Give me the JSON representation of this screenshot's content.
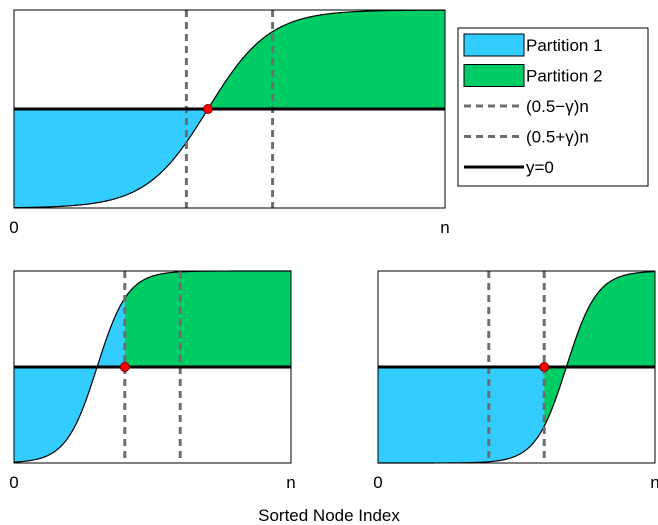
{
  "xlabel": "Sorted Node Index",
  "legend": {
    "placement": "right",
    "items": [
      {
        "label": "Partition 1",
        "kind": "patch",
        "color": "#33ccff"
      },
      {
        "label": "Partition 2",
        "kind": "patch",
        "color": "#00cc66"
      },
      {
        "label": "(0.5−γ)n",
        "kind": "dashed",
        "color": "#6e6e6e"
      },
      {
        "label": "(0.5+γ)n",
        "kind": "dashed",
        "color": "#6e6e6e"
      },
      {
        "label": "y=0",
        "kind": "solid",
        "color": "#000000"
      }
    ]
  },
  "colors": {
    "partition1": "#33ccff",
    "partition2": "#00cc66",
    "vline": "#6e6e6e",
    "marker": "#ff0000",
    "axis": "#000000"
  },
  "chart_data": [
    {
      "type": "area",
      "panel": "top",
      "xtick_labels": [
        "0",
        "n"
      ],
      "xlim": [
        0,
        1
      ],
      "ylim": [
        -1,
        1
      ],
      "grid": false,
      "curve": {
        "shape": "sigmoid",
        "center": 0.45,
        "steepness": 14
      },
      "vlines": [
        0.4,
        0.6
      ],
      "split": 0.45,
      "marker": {
        "x": 0.45,
        "y": 0
      }
    },
    {
      "type": "area",
      "panel": "bottom-left",
      "xtick_labels": [
        "0",
        "n"
      ],
      "xlim": [
        0,
        1
      ],
      "ylim": [
        -1,
        1
      ],
      "grid": false,
      "curve": {
        "shape": "sigmoid",
        "center": 0.3,
        "steepness": 18
      },
      "vlines": [
        0.4,
        0.6
      ],
      "split": 0.4,
      "marker": {
        "x": 0.4,
        "y": 0
      }
    },
    {
      "type": "area",
      "panel": "bottom-right",
      "xtick_labels": [
        "0",
        "n"
      ],
      "xlim": [
        0,
        1
      ],
      "ylim": [
        -1,
        1
      ],
      "grid": false,
      "curve": {
        "shape": "sigmoid",
        "center": 0.68,
        "steepness": 18
      },
      "vlines": [
        0.4,
        0.6
      ],
      "split": 0.6,
      "marker": {
        "x": 0.6,
        "y": 0
      }
    }
  ]
}
